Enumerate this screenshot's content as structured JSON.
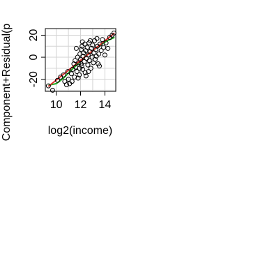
{
  "chart_data": {
    "type": "scatter",
    "xlabel": "log2(income)",
    "ylabel": "Component+Residual(p",
    "xlim": [
      9.1,
      14.9
    ],
    "ylim": [
      -31,
      26
    ],
    "xticks": [
      10,
      12,
      14
    ],
    "yticks": [
      -20,
      0,
      20
    ],
    "grid": true,
    "colors": {
      "points": "#000000",
      "fit_line": "#e03030",
      "smooth_line": "#22aa22",
      "grid": "#d3d3d3"
    },
    "fit_line": {
      "x": [
        9.35,
        14.8
      ],
      "y": [
        -26.5,
        22
      ]
    },
    "smooth_line": {
      "x": [
        9.35,
        10.0,
        10.6,
        11.2,
        11.8,
        12.4,
        13.0,
        13.6,
        14.2,
        14.8
      ],
      "y": [
        -25.5,
        -24.0,
        -19.0,
        -12.0,
        -6.0,
        1.0,
        6.0,
        11.0,
        15.0,
        18.0
      ]
    },
    "points": [
      [
        9.35,
        -26
      ],
      [
        9.7,
        -30
      ],
      [
        10.1,
        -21
      ],
      [
        10.35,
        -18
      ],
      [
        10.6,
        -16
      ],
      [
        10.7,
        -22
      ],
      [
        10.95,
        -13
      ],
      [
        11.0,
        -20
      ],
      [
        11.1,
        -24
      ],
      [
        11.25,
        -15
      ],
      [
        11.35,
        -11
      ],
      [
        11.45,
        -6
      ],
      [
        11.5,
        -18
      ],
      [
        11.55,
        -3
      ],
      [
        11.6,
        -9
      ],
      [
        11.7,
        -13
      ],
      [
        11.75,
        0
      ],
      [
        11.8,
        -19
      ],
      [
        11.85,
        -5
      ],
      [
        11.9,
        -16
      ],
      [
        11.95,
        3
      ],
      [
        12.0,
        -2
      ],
      [
        12.05,
        7
      ],
      [
        12.1,
        -8
      ],
      [
        12.12,
        10
      ],
      [
        12.18,
        -11
      ],
      [
        12.2,
        1
      ],
      [
        12.25,
        4
      ],
      [
        12.3,
        -4
      ],
      [
        12.35,
        12
      ],
      [
        12.38,
        -14
      ],
      [
        12.42,
        6
      ],
      [
        12.5,
        -1
      ],
      [
        12.55,
        9
      ],
      [
        12.6,
        -7
      ],
      [
        12.62,
        2
      ],
      [
        12.7,
        13
      ],
      [
        12.72,
        -3
      ],
      [
        12.78,
        5
      ],
      [
        12.85,
        -10
      ],
      [
        12.9,
        8
      ],
      [
        12.95,
        0
      ],
      [
        13.0,
        11
      ],
      [
        13.05,
        -5
      ],
      [
        13.1,
        4
      ],
      [
        13.15,
        15
      ],
      [
        13.2,
        -2
      ],
      [
        13.25,
        7
      ],
      [
        13.3,
        1
      ],
      [
        13.38,
        10
      ],
      [
        13.45,
        -6
      ],
      [
        13.5,
        3
      ],
      [
        13.6,
        12
      ],
      [
        13.7,
        6
      ],
      [
        13.8,
        16
      ],
      [
        13.9,
        9
      ],
      [
        14.0,
        2
      ],
      [
        14.1,
        13
      ],
      [
        14.25,
        8
      ],
      [
        14.4,
        18
      ],
      [
        14.6,
        20
      ],
      [
        14.75,
        22
      ],
      [
        12.15,
        14
      ],
      [
        11.65,
        8
      ],
      [
        12.45,
        -17
      ],
      [
        11.92,
        -10
      ],
      [
        13.55,
        -8
      ],
      [
        12.8,
        15
      ],
      [
        12.05,
        -6
      ],
      [
        11.3,
        -22
      ],
      [
        10.85,
        -25
      ],
      [
        12.65,
        -13
      ],
      [
        13.35,
        17
      ]
    ]
  }
}
